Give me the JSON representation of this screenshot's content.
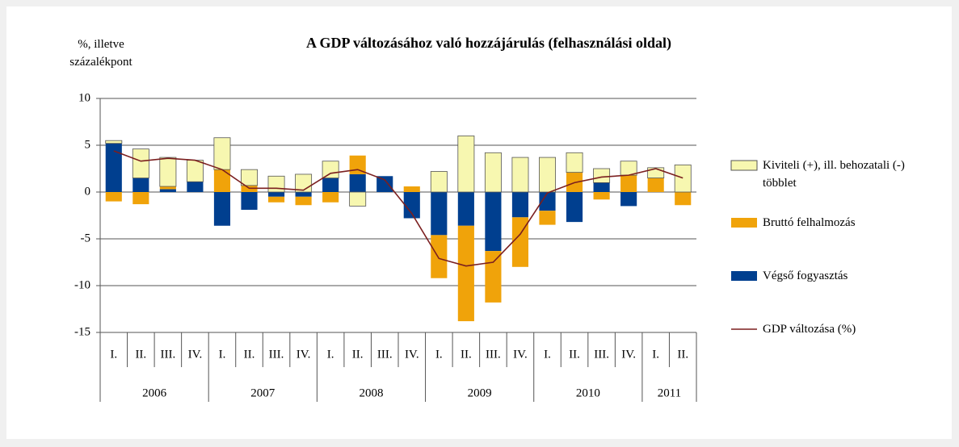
{
  "chart_data": {
    "type": "bar",
    "title": "A GDP változásához való hozzájárulás (felhasználási oldal)",
    "y_label": "%, illetve százalékpont",
    "categories": [
      "I.",
      "II.",
      "III.",
      "IV.",
      "I.",
      "II.",
      "III.",
      "IV.",
      "I.",
      "II.",
      "III.",
      "IV.",
      "I.",
      "II.",
      "III.",
      "IV.",
      "I.",
      "II.",
      "III.",
      "IV.",
      "I.",
      "II."
    ],
    "year_groups": [
      {
        "label": "2006",
        "count": 4
      },
      {
        "label": "2007",
        "count": 4
      },
      {
        "label": "2008",
        "count": 4
      },
      {
        "label": "2009",
        "count": 4
      },
      {
        "label": "2010",
        "count": 4
      },
      {
        "label": "2011",
        "count": 2
      }
    ],
    "ylim": [
      -15,
      10
    ],
    "yticks": [
      -15,
      -10,
      -5,
      0,
      5,
      10
    ],
    "grid": true,
    "legend": "right",
    "series": [
      {
        "name": "Kiviteli (+), ill. behozatali (-) többlet",
        "type": "bar",
        "color": "#f7f7b0",
        "values": [
          0.3,
          3.1,
          3.1,
          2.3,
          3.4,
          1.7,
          1.7,
          1.9,
          1.8,
          -1.5,
          0,
          0,
          2.2,
          6.0,
          4.2,
          3.7,
          3.7,
          2.1,
          1.5,
          1.5,
          1.1,
          2.9
        ]
      },
      {
        "name": "Bruttó felhalmozás",
        "type": "bar",
        "color": "#f0a30a",
        "values": [
          -1.0,
          -1.3,
          0.3,
          0,
          2.4,
          0.7,
          -0.6,
          -0.9,
          -1.1,
          2.0,
          0,
          0.6,
          -4.6,
          -10.2,
          -5.5,
          -5.3,
          -1.5,
          2.1,
          -0.8,
          1.8,
          1.5,
          -1.4
        ]
      },
      {
        "name": "Végső fogyasztás",
        "type": "bar",
        "color": "#003f8f",
        "values": [
          5.2,
          1.5,
          0.3,
          1.1,
          -3.6,
          -1.9,
          -0.5,
          -0.5,
          1.5,
          1.9,
          1.7,
          -2.8,
          -4.6,
          -3.6,
          -6.3,
          -2.7,
          -2.0,
          -3.2,
          1.0,
          -1.5,
          0,
          0
        ]
      },
      {
        "name": "GDP változása (%)",
        "type": "line",
        "color": "#7b1f1f",
        "values": [
          4.4,
          3.3,
          3.6,
          3.4,
          2.4,
          0.4,
          0.4,
          0.2,
          2.0,
          2.4,
          1.3,
          -2.3,
          -7.1,
          -7.9,
          -7.5,
          -4.5,
          -0.1,
          1.0,
          1.6,
          1.8,
          2.5,
          1.5
        ]
      }
    ]
  }
}
